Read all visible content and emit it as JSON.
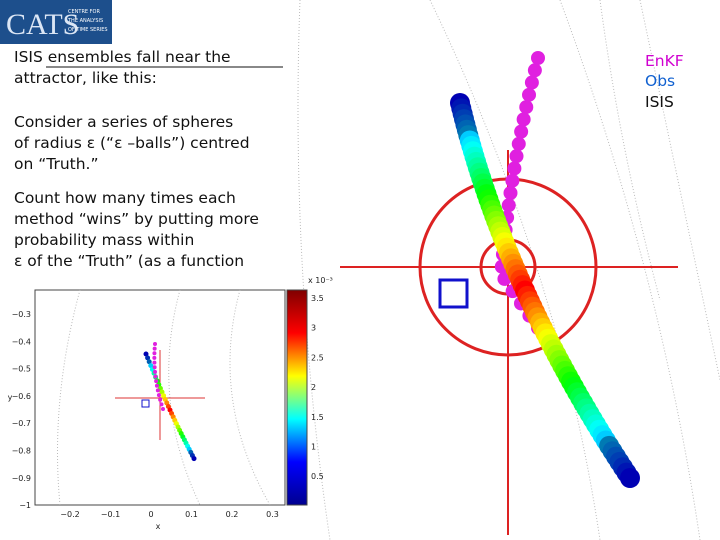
{
  "logo": {
    "text": "CATS",
    "lines": [
      "CENTRE FOR",
      "THE ANALYSIS",
      "OF TIME SERIES"
    ]
  },
  "paragraphs": [
    [
      "ISIS ensembles fall near the",
      "attractor, like this:"
    ],
    [
      "Consider a series of spheres",
      "of radius ε (“ε –balls”) centred",
      "on “Truth.”"
    ],
    [
      "Count how many times each",
      "method “wins” by putting more",
      "probability mass within",
      "ε of the “Truth” (as a function"
    ]
  ],
  "legend": [
    "EnKF",
    "Obs",
    "ISIS"
  ],
  "inset": {
    "yticks": [
      "−0.3",
      "−0.4",
      "−0.5",
      "−0.6",
      "−0.7",
      "−0.8",
      "−0.9",
      "−1"
    ],
    "xticks": [
      "−0.2",
      "−0.1",
      "0",
      "0.1",
      "0.2",
      "0.3"
    ],
    "xlabel": "x",
    "ylabel": "y",
    "cbticks": [
      "3.5",
      "3",
      "2.5",
      "2",
      "1.5",
      "1",
      "0.5"
    ],
    "cbexponent": "x 10⁻³"
  }
}
